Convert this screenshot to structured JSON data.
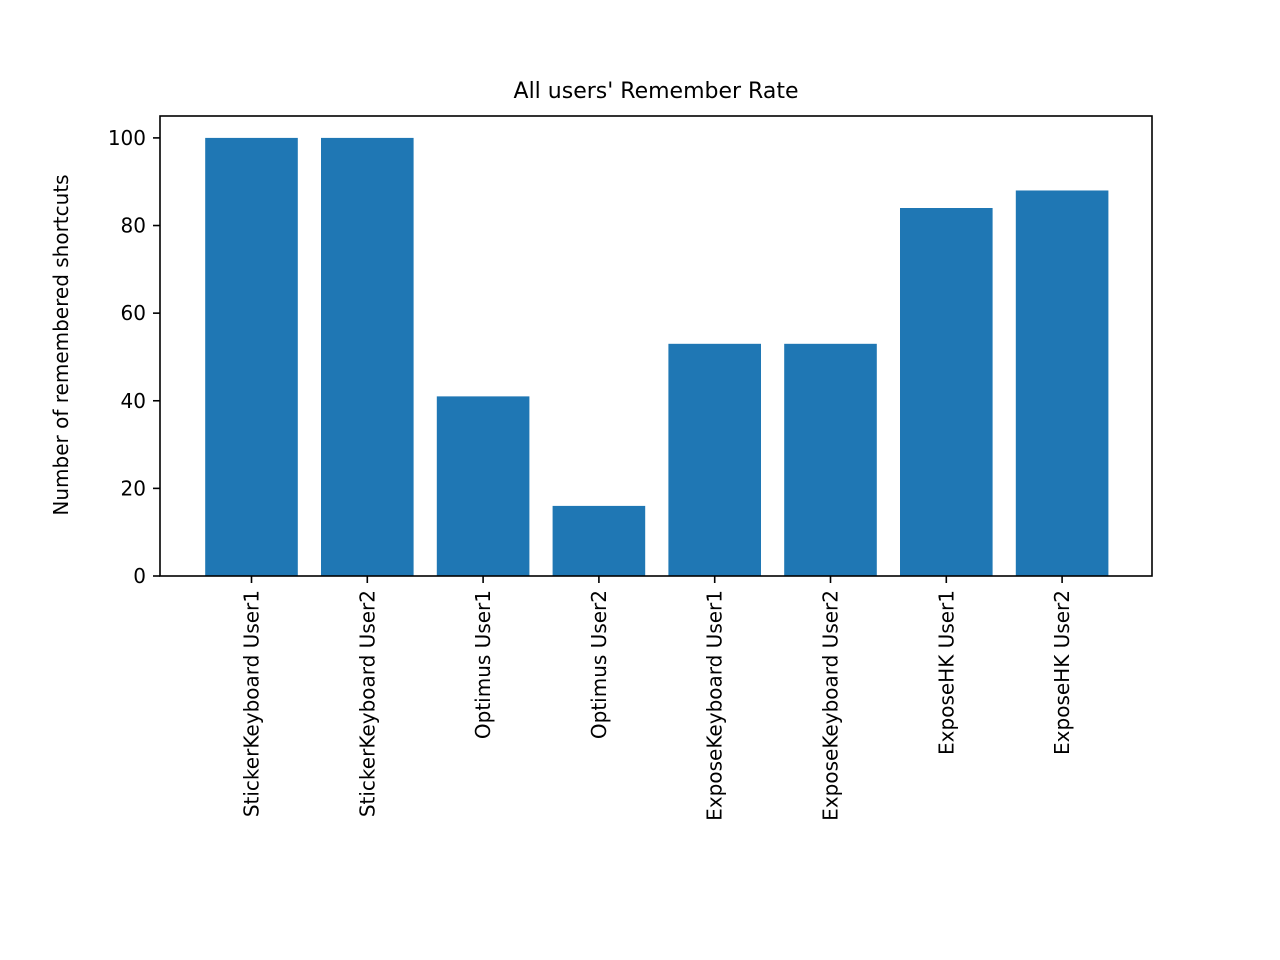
{
  "chart_data": {
    "type": "bar",
    "title": "All users' Remember Rate",
    "xlabel": "",
    "ylabel": "Number of remembered shortcuts",
    "categories": [
      "StickerKeyboard User1",
      "StickerKeyboard User2",
      "Optimus User1",
      "Optimus User2",
      "ExposeKeyboard User1",
      "ExposeKeyboard User2",
      "ExposeHK User1",
      "ExposeHK User2"
    ],
    "values": [
      100,
      100,
      41,
      16,
      53,
      53,
      84,
      88
    ],
    "ylim": [
      0,
      105
    ],
    "yticks": [
      0,
      20,
      40,
      60,
      80,
      100
    ],
    "bar_color": "#1f77b4",
    "grid": false,
    "legend": "none"
  }
}
